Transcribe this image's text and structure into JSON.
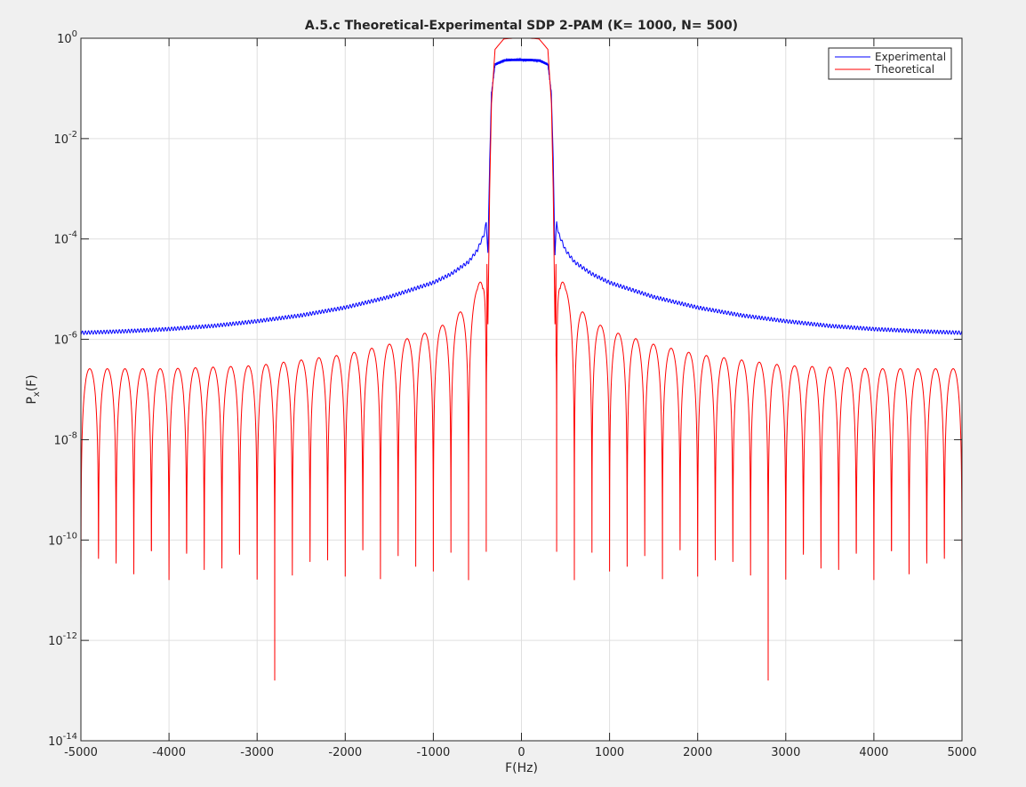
{
  "chart_data": {
    "type": "line",
    "title": "A.5.c Theoretical-Experimental SDP 2-PAM (K= 1000, N= 500)",
    "xlabel": "F(Hz)",
    "ylabel": {
      "base": "P",
      "subscript": "x",
      "suffix": "(F)"
    },
    "xlim": [
      -5000,
      5000
    ],
    "ylim": [
      1e-14,
      1
    ],
    "yscale": "log",
    "grid": true,
    "legend_position": "top-right",
    "x_ticks": [
      -5000,
      -4000,
      -3000,
      -2000,
      -1000,
      0,
      1000,
      2000,
      3000,
      4000,
      5000
    ],
    "x_tick_labels": [
      "-5000",
      "-4000",
      "-3000",
      "-2000",
      "-1000",
      "0",
      "1000",
      "2000",
      "3000",
      "4000",
      "5000"
    ],
    "y_ticks": [
      {
        "value": 1,
        "base": "10",
        "exp": "0"
      },
      {
        "value": 0.01,
        "base": "10",
        "exp": "-2"
      },
      {
        "value": 0.0001,
        "base": "10",
        "exp": "-4"
      },
      {
        "value": 1e-06,
        "base": "10",
        "exp": "-6"
      },
      {
        "value": 1e-08,
        "base": "10",
        "exp": "-8"
      },
      {
        "value": 1e-10,
        "base": "10",
        "exp": "-10"
      },
      {
        "value": 1e-12,
        "base": "10",
        "exp": "-12"
      },
      {
        "value": 1e-14,
        "base": "10",
        "exp": "-14"
      }
    ],
    "series": [
      {
        "name": "Experimental",
        "color": "#0000ff",
        "x": [
          -5000,
          -4500,
          -4000,
          -3500,
          -3000,
          -2500,
          -2000,
          -1500,
          -1000,
          -800,
          -600,
          -500,
          -420,
          -400,
          -380,
          -360,
          -340,
          -300,
          -200,
          -100,
          0,
          100,
          200,
          300,
          340,
          360,
          380,
          400,
          420,
          500,
          600,
          800,
          1000,
          1500,
          2000,
          2500,
          3000,
          3500,
          4000,
          4500,
          5000
        ],
        "y": [
          1.35e-06,
          1.45e-06,
          1.6e-06,
          1.85e-06,
          2.3e-06,
          3e-06,
          4.3e-06,
          7e-06,
          1.35e-05,
          2e-05,
          3.5e-05,
          6e-05,
          0.00013,
          0.00022,
          5e-05,
          0.004,
          0.08,
          0.3,
          0.36,
          0.37,
          0.37,
          0.37,
          0.36,
          0.3,
          0.08,
          0.004,
          5e-05,
          0.00022,
          0.00013,
          6e-05,
          3.5e-05,
          2e-05,
          1.35e-05,
          7e-06,
          4.3e-06,
          3e-06,
          2.3e-06,
          1.85e-06,
          1.6e-06,
          1.45e-06,
          1.35e-06
        ]
      },
      {
        "name": "Theoretical",
        "color": "#ff0000",
        "x": [
          -5000,
          -4000,
          -3000,
          -2000,
          -1500,
          -1000,
          -800,
          -600,
          -500,
          -440,
          -400,
          -380,
          -360,
          -340,
          -300,
          -200,
          -100,
          0,
          100,
          200,
          300,
          340,
          360,
          380,
          400,
          440,
          500,
          600,
          800,
          1000,
          1500,
          2000,
          3000,
          4000,
          5000
        ],
        "envelope_y": [
          2.6e-07,
          2.6e-07,
          3e-07,
          5e-07,
          8e-07,
          1.5e-06,
          2.4e-06,
          5e-06,
          1e-05,
          3e-05,
          0.0002,
          2e-06,
          0.001,
          0.05,
          0.6,
          0.97,
          1,
          1,
          1,
          0.97,
          0.6,
          0.05,
          0.001,
          2e-06,
          0.0002,
          3e-05,
          1e-05,
          5e-06,
          2.4e-06,
          1.5e-06,
          8e-07,
          5e-07,
          3e-07,
          2.6e-07,
          2.6e-07
        ],
        "note_dips": "deep nulls between side lobes reaching ~1e-9 to 1e-13 (deepest near F = ±2800)"
      }
    ]
  }
}
